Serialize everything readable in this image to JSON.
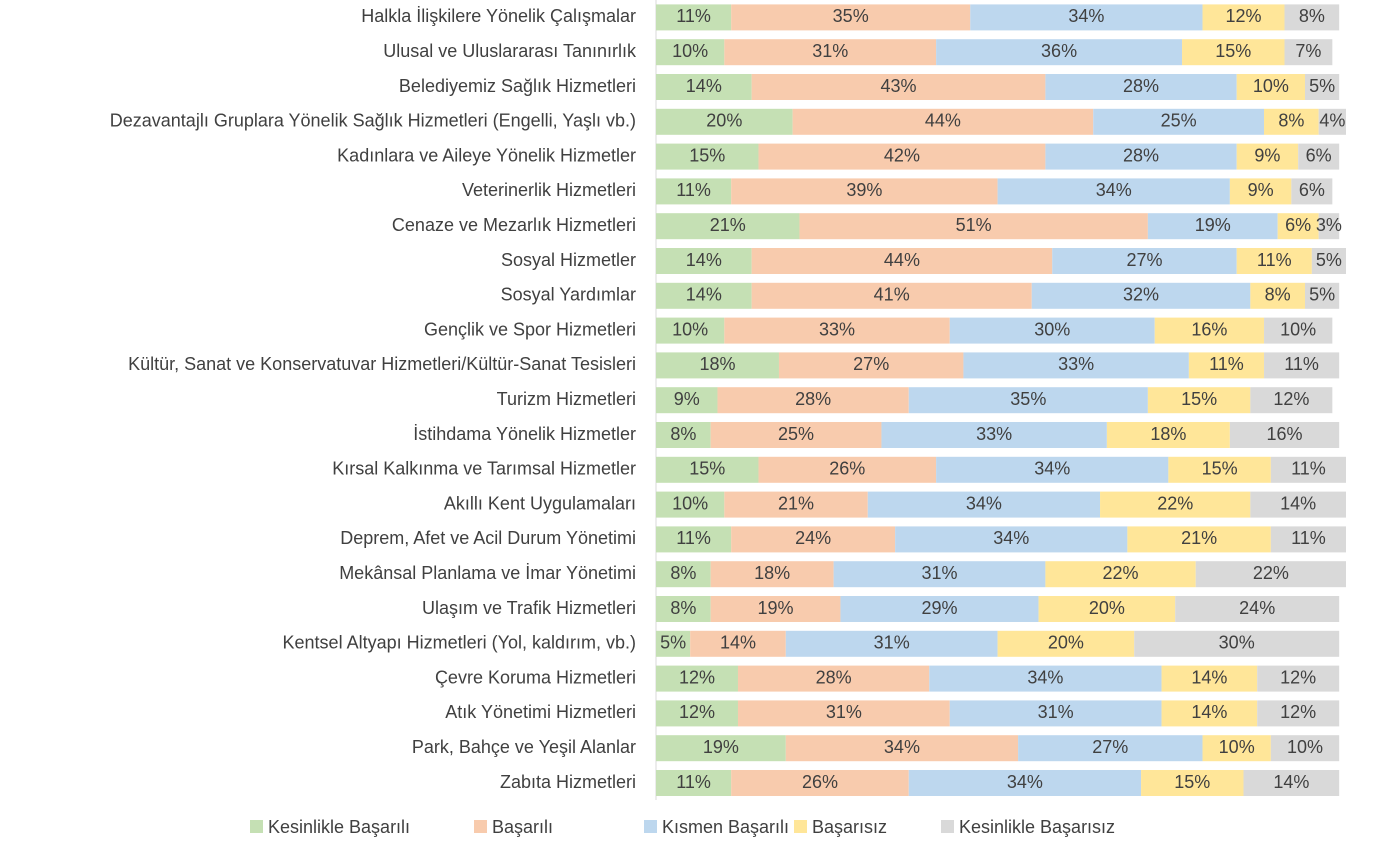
{
  "chart_data": {
    "type": "stacked_bar_horizontal",
    "categories": [
      "Halkla İlişkilere Yönelik Çalışmalar",
      "Ulusal ve Uluslararası Tanınırlık",
      "Belediyemiz Sağlık Hizmetleri",
      "Dezavantajlı Gruplara Yönelik Sağlık Hizmetleri (Engelli, Yaşlı vb.)",
      "Kadınlara ve Aileye Yönelik Hizmetler",
      "Veterinerlik Hizmetleri",
      "Cenaze ve Mezarlık Hizmetleri",
      "Sosyal Hizmetler",
      "Sosyal Yardımlar",
      "Gençlik ve Spor Hizmetleri",
      "Kültür, Sanat ve Konservatuvar Hizmetleri/Kültür-Sanat Tesisleri",
      "Turizm Hizmetleri",
      "İstihdama Yönelik Hizmetler",
      "Kırsal Kalkınma ve Tarımsal Hizmetler",
      "Akıllı Kent Uygulamaları",
      "Deprem, Afet ve Acil Durum Yönetimi",
      "Mekânsal Planlama ve İmar Yönetimi",
      "Ulaşım ve Trafik Hizmetleri",
      "Kentsel Altyapı Hizmetleri (Yol, kaldırım, vb.)",
      "Çevre Koruma Hizmetleri",
      "Atık Yönetimi Hizmetleri",
      "Park, Bahçe ve Yeşil Alanlar",
      "Zabıta Hizmetleri"
    ],
    "series": [
      {
        "name": "Kesinlikle Başarılı",
        "color": "#c5e0b4",
        "values": [
          11,
          10,
          14,
          20,
          15,
          11,
          21,
          14,
          14,
          10,
          18,
          9,
          8,
          15,
          10,
          11,
          8,
          8,
          5,
          12,
          12,
          19,
          11
        ],
        "value_labels": [
          "11%",
          "10%",
          "14%",
          "20%",
          "15%",
          "11%",
          "21%",
          "14%",
          "14%",
          "10%",
          "18%",
          "9%",
          "8%",
          "15%",
          "10%",
          "11%",
          "8%",
          "8%",
          "5%",
          "12%",
          "12%",
          "19%",
          "11%"
        ]
      },
      {
        "name": "Başarılı",
        "color": "#f8cbad",
        "values": [
          35,
          31,
          43,
          44,
          42,
          39,
          51,
          44,
          41,
          33,
          27,
          28,
          25,
          26,
          21,
          24,
          18,
          19,
          14,
          28,
          31,
          34,
          26
        ],
        "value_labels": [
          "35%",
          "31%",
          "43%",
          "44%",
          "42%",
          "39%",
          "51%",
          "44%",
          "41%",
          "33%",
          "27%",
          "28%",
          "25%",
          "26%",
          "21%",
          "24%",
          "18%",
          "19%",
          "14%",
          "28%",
          "31%",
          "34%",
          "26%"
        ]
      },
      {
        "name": "Kısmen Başarılı",
        "color": "#bdd7ee",
        "values": [
          34,
          36,
          28,
          25,
          28,
          34,
          19,
          27,
          32,
          30,
          33,
          35,
          33,
          34,
          34,
          34,
          31,
          29,
          31,
          34,
          31,
          27,
          34
        ],
        "value_labels": [
          "34%",
          "36%",
          "28%",
          "25%",
          "28%",
          "34%",
          "19%",
          "27%",
          "32%",
          "30%",
          "33%",
          "35%",
          "33%",
          "34%",
          "34%",
          "34%",
          "31%",
          "29%",
          "31%",
          "34%",
          "31%",
          "27%",
          "34%"
        ]
      },
      {
        "name": "Başarısız",
        "color": "#ffe699",
        "values": [
          12,
          15,
          10,
          8,
          9,
          9,
          6,
          11,
          8,
          16,
          11,
          15,
          18,
          15,
          22,
          21,
          22,
          20,
          20,
          14,
          14,
          10,
          15
        ],
        "value_labels": [
          "12%",
          "15%",
          "10%",
          "8%",
          "9%",
          "9%",
          "6%",
          "11%",
          "8%",
          "16%",
          "11%",
          "15%",
          "18%",
          "15%",
          "22%",
          "21%",
          "22%",
          "20%",
          "20%",
          "14%",
          "14%",
          "10%",
          "15%"
        ]
      },
      {
        "name": "Kesinlikle Başarısız",
        "color": "#d9d9d9",
        "values": [
          8,
          7,
          5,
          4,
          6,
          6,
          3,
          5,
          5,
          10,
          11,
          12,
          16,
          11,
          14,
          11,
          22,
          24,
          30,
          12,
          12,
          10,
          14
        ],
        "value_labels": [
          "8%",
          "7%",
          "5%",
          "4%",
          "6%",
          "6%",
          "3%",
          "5%",
          "5%",
          "10%",
          "11%",
          "12%",
          "16%",
          "11%",
          "14%",
          "11%",
          "22%",
          "24%",
          "30%",
          "12%",
          "12%",
          "10%",
          "14%"
        ]
      }
    ]
  }
}
